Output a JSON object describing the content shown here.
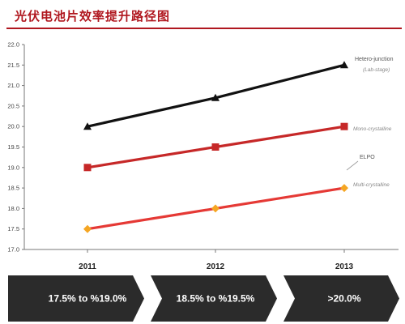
{
  "title": "光伏电池片效率提升路径图",
  "colors": {
    "title": "#b0171f",
    "black_series": "#111111",
    "dark_red_series": "#c62828",
    "red_series": "#e53935",
    "orange_marker": "#f5a623",
    "chevron": "#2b2b2b"
  },
  "chart_data": {
    "type": "line",
    "categories": [
      "2011",
      "2012",
      "2013"
    ],
    "ylim": [
      17.0,
      22.0
    ],
    "yticks": [
      "17.0",
      "17.5",
      "18.0",
      "18.5",
      "19.0",
      "19.5",
      "20.0",
      "20.5",
      "21.0",
      "21.5",
      "22.0"
    ],
    "grid": false,
    "series": [
      {
        "name": "Hetero-junction",
        "sublabel": "(Lab-stage)",
        "values": [
          20.0,
          20.7,
          21.5
        ],
        "color": "#111111",
        "marker": "triangle"
      },
      {
        "name": "Mono-crystalline",
        "values": [
          19.0,
          19.5,
          20.0
        ],
        "color": "#c62828",
        "marker": "square"
      },
      {
        "name": "Multi-crystalline",
        "values": [
          17.5,
          18.0,
          18.5
        ],
        "color": "#e53935",
        "marker": "diamond"
      }
    ],
    "annotations": [
      {
        "text": "ELPO"
      }
    ],
    "ranges": [
      "17.5% to %19.0%",
      "18.5% to %19.5%",
      ">20.0%"
    ]
  }
}
